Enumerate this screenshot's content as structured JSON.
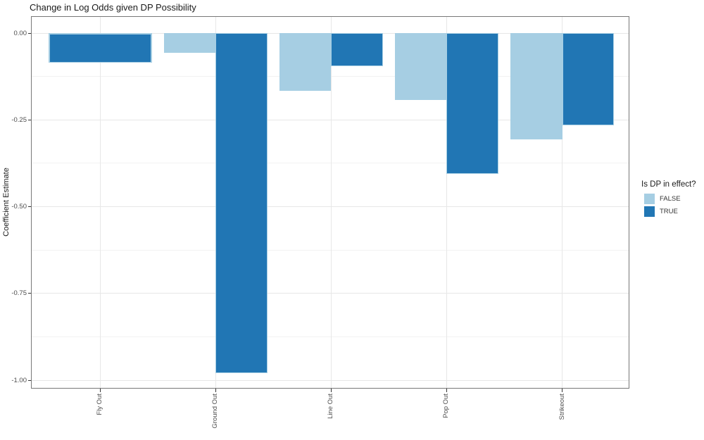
{
  "chart_data": {
    "type": "bar",
    "title": "Change in Log Odds given DP Possibility",
    "xlabel": "",
    "ylabel": "Coefficient Estimate",
    "categories": [
      "Fly Out",
      "Ground Out",
      "Line Out",
      "Pop Out",
      "Strikeout"
    ],
    "series": [
      {
        "name": "FALSE",
        "color": "#A6CEE3",
        "values": [
          -0.085,
          -0.057,
          -0.167,
          -0.192,
          -0.307
        ]
      },
      {
        "name": "TRUE",
        "color": "#2176B4",
        "values": [
          -0.084,
          -0.98,
          -0.095,
          -0.406,
          -0.265
        ]
      }
    ],
    "ylim": [
      -1.02,
      0.05
    ],
    "yticks": [
      0,
      -0.25,
      -0.5,
      -0.75,
      -1.0
    ],
    "ytick_labels": [
      "0.00",
      "-0.25",
      "-0.50",
      "-0.75",
      "-1.00"
    ],
    "grid": true,
    "legend_position": "right",
    "bar_layout": "dodged pairs per category; for Fly Out the FALSE and TRUE bars fully overlap at full group width so only the TRUE bar is visible with a thin FALSE-colored fringe"
  },
  "legend": {
    "title": "Is DP in effect?",
    "items": [
      {
        "label": "FALSE",
        "color": "#A6CEE3"
      },
      {
        "label": "TRUE",
        "color": "#2176B4"
      }
    ]
  }
}
